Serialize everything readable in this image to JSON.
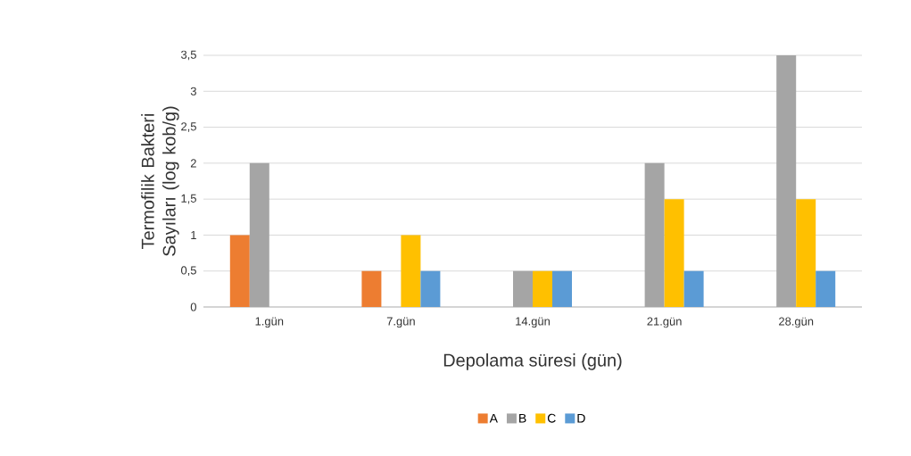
{
  "chart_data": {
    "type": "bar",
    "xlabel": "Depolama süresi (gün)",
    "ylabel": "Termofilik Bakteri Sayıları (log kob/g)",
    "categories": [
      "1.gün",
      "7.gün",
      "14.gün",
      "21.gün",
      "28.gün"
    ],
    "series": [
      {
        "name": "A",
        "color": "#ed7d31",
        "values": [
          1,
          0.5,
          0,
          0,
          0
        ]
      },
      {
        "name": "B",
        "color": "#a5a5a5",
        "values": [
          2,
          0,
          0.5,
          2,
          3.5
        ]
      },
      {
        "name": "C",
        "color": "#ffc000",
        "values": [
          0,
          1,
          0.5,
          1.5,
          1.5
        ]
      },
      {
        "name": "D",
        "color": "#5b9bd5",
        "values": [
          0,
          0.5,
          0.5,
          0.5,
          0.5
        ]
      }
    ],
    "ylim": [
      0,
      3.5
    ],
    "yticks": [
      0,
      {
        "value": 0.5,
        "label": "0,5"
      },
      1,
      {
        "value": 1.5,
        "label": "1,5"
      },
      2,
      {
        "value": 2.5,
        "label": "2,5"
      },
      3,
      {
        "value": 3.5,
        "label": "3,5"
      }
    ],
    "grid": "y",
    "legend": "bottom"
  }
}
